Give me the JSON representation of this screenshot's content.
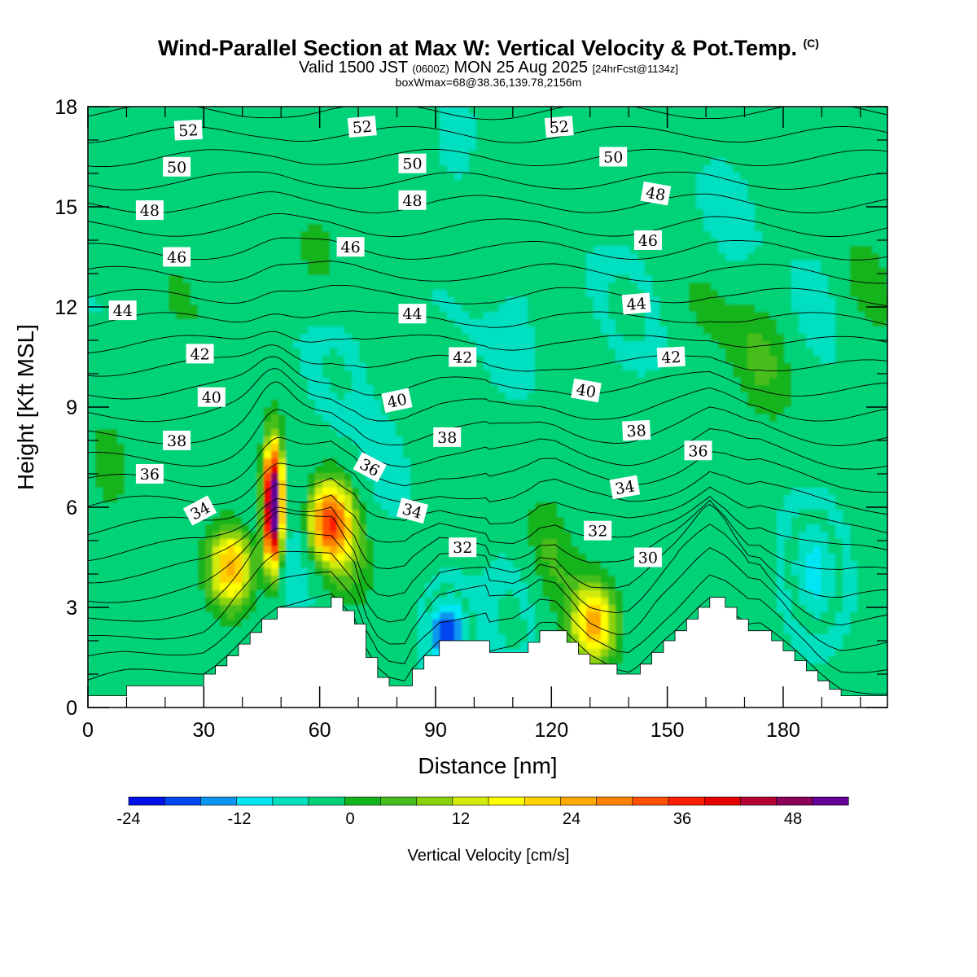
{
  "chart_data": {
    "type": "heatmap",
    "title": "Wind-Parallel Section at Max W: Vertical Velocity & Pot.Temp.",
    "title_mark": "(C)",
    "valid_prefix": "Valid 1500 JST",
    "valid_utc": "(0600Z)",
    "valid_date": "MON 25 Aug 2025",
    "forecast_info": "[24hrFcst@1134z]",
    "box_info": "boxWmax=68@38.36,139.78,2156m",
    "xlabel": "Distance [nm]",
    "ylabel": "Height [Kft MSL]",
    "xlim": [
      0,
      207
    ],
    "ylim": [
      0,
      18
    ],
    "x_ticks": [
      "0",
      "30",
      "60",
      "90",
      "120",
      "150",
      "180"
    ],
    "y_ticks": [
      "0",
      "3",
      "6",
      "9",
      "12",
      "15",
      "18"
    ],
    "colorbar": {
      "title": "Vertical Velocity [cm/s]",
      "tick_labels": [
        "-24",
        "-12",
        "0",
        "12",
        "24",
        "36",
        "48"
      ],
      "colors": [
        "#0010e8",
        "#0046f0",
        "#0a96f0",
        "#00e6f5",
        "#00e0c0",
        "#00d278",
        "#14b41e",
        "#46be1e",
        "#8cd20a",
        "#d2eb0a",
        "#ffff00",
        "#ffd200",
        "#ffaa00",
        "#ff8200",
        "#ff5000",
        "#ff1e00",
        "#e60000",
        "#b40032",
        "#8c005a",
        "#640096"
      ],
      "levels": [
        -24,
        -21,
        -18,
        -15,
        -12,
        -9,
        -6,
        -3,
        0,
        3,
        6,
        9,
        12,
        15,
        18,
        21,
        24,
        27,
        30,
        33,
        36,
        39,
        42,
        45,
        48,
        51
      ]
    },
    "w_features": [
      {
        "x": 48,
        "z": 6.0,
        "w": 55
      },
      {
        "x": 37,
        "z": 4.2,
        "w": 22
      },
      {
        "x": 62,
        "z": 5.5,
        "w": 30
      },
      {
        "x": 68,
        "z": 4.8,
        "w": 8
      },
      {
        "x": 55,
        "z": 5.0,
        "w": -8
      },
      {
        "x": 93,
        "z": 2.2,
        "w": -20
      },
      {
        "x": 112,
        "z": 3.0,
        "w": -9
      },
      {
        "x": 131,
        "z": 2.5,
        "w": 22
      },
      {
        "x": 118,
        "z": 4.2,
        "w": 9
      },
      {
        "x": 188,
        "z": 4.0,
        "w": -12
      },
      {
        "x": 75,
        "z": 6.5,
        "w": -5
      },
      {
        "x": 65,
        "z": 10.5,
        "w": -5
      },
      {
        "x": 112,
        "z": 12.0,
        "w": -5
      },
      {
        "x": 140,
        "z": 12.0,
        "w": -5
      },
      {
        "x": 165,
        "z": 14.5,
        "w": -4
      },
      {
        "x": 95,
        "z": 16.5,
        "w": -4
      },
      {
        "x": 190,
        "z": 12.5,
        "w": -4
      },
      {
        "x": 175,
        "z": 10.5,
        "w": 6
      },
      {
        "x": 160,
        "z": 12.0,
        "w": 3
      },
      {
        "x": 60,
        "z": 13.5,
        "w": 3
      },
      {
        "x": 108,
        "z": 16.0,
        "w": 3
      },
      {
        "x": 5,
        "z": 6.8,
        "w": 4
      },
      {
        "x": 200,
        "z": 12.5,
        "w": 4
      },
      {
        "x": 25,
        "z": 13.0,
        "w": 2
      }
    ],
    "terrain": {
      "x": [
        0,
        10,
        30,
        33,
        36,
        39,
        42,
        45,
        49,
        63,
        66,
        69,
        72,
        75,
        78,
        82,
        84,
        87,
        91,
        103,
        104,
        110,
        114,
        117,
        121,
        124,
        127,
        130,
        137,
        140,
        143,
        146,
        149,
        152,
        155,
        158,
        161,
        165,
        168,
        171,
        174,
        177,
        180,
        183,
        186,
        189,
        192,
        195,
        198,
        201,
        207
      ],
      "z": [
        0.35,
        0.65,
        1.0,
        1.25,
        1.55,
        1.9,
        2.25,
        2.65,
        3.0,
        3.3,
        2.9,
        2.5,
        1.5,
        0.9,
        0.65,
        0.65,
        1.15,
        1.55,
        2.0,
        2.0,
        1.65,
        1.65,
        1.95,
        2.3,
        2.3,
        1.95,
        1.6,
        1.3,
        1.0,
        1.0,
        1.3,
        1.65,
        2.0,
        2.3,
        2.65,
        3.0,
        3.3,
        3.0,
        2.65,
        2.3,
        2.3,
        2.0,
        1.7,
        1.4,
        1.1,
        0.8,
        0.55,
        0.35,
        0.35,
        0.35,
        0.35
      ]
    },
    "theta_levels": {
      "min": 28,
      "max": 53,
      "step": 1
    },
    "theta_labels": [
      {
        "text": "52",
        "x": 26,
        "z": 17.3,
        "rot": -3
      },
      {
        "text": "50",
        "x": 23,
        "z": 16.2,
        "rot": 0
      },
      {
        "text": "48",
        "x": 16,
        "z": 14.9,
        "rot": 0
      },
      {
        "text": "46",
        "x": 23,
        "z": 13.5,
        "rot": 0
      },
      {
        "text": "44",
        "x": 9,
        "z": 11.9,
        "rot": 0
      },
      {
        "text": "42",
        "x": 29,
        "z": 10.6,
        "rot": 0
      },
      {
        "text": "40",
        "x": 32,
        "z": 9.3,
        "rot": 0
      },
      {
        "text": "38",
        "x": 23,
        "z": 8.0,
        "rot": 0
      },
      {
        "text": "36",
        "x": 16,
        "z": 7.0,
        "rot": 0
      },
      {
        "text": "34",
        "x": 29,
        "z": 5.9,
        "rot": -28
      },
      {
        "text": "52",
        "x": 71,
        "z": 17.4,
        "rot": -5
      },
      {
        "text": "50",
        "x": 84,
        "z": 16.3,
        "rot": 0
      },
      {
        "text": "48",
        "x": 84,
        "z": 15.2,
        "rot": 0
      },
      {
        "text": "46",
        "x": 68,
        "z": 13.8,
        "rot": 0
      },
      {
        "text": "44",
        "x": 84,
        "z": 11.8,
        "rot": 0
      },
      {
        "text": "42",
        "x": 97,
        "z": 10.5,
        "rot": 0
      },
      {
        "text": "40",
        "x": 80,
        "z": 9.2,
        "rot": -12
      },
      {
        "text": "38",
        "x": 93,
        "z": 8.1,
        "rot": 0
      },
      {
        "text": "36",
        "x": 73,
        "z": 7.2,
        "rot": 28
      },
      {
        "text": "34",
        "x": 84,
        "z": 5.9,
        "rot": 15
      },
      {
        "text": "32",
        "x": 97,
        "z": 4.8,
        "rot": 0
      },
      {
        "text": "52",
        "x": 122,
        "z": 17.4,
        "rot": -5
      },
      {
        "text": "50",
        "x": 136,
        "z": 16.5,
        "rot": 0
      },
      {
        "text": "48",
        "x": 147,
        "z": 15.4,
        "rot": 10
      },
      {
        "text": "46",
        "x": 145,
        "z": 14.0,
        "rot": 0
      },
      {
        "text": "44",
        "x": 142,
        "z": 12.1,
        "rot": -5
      },
      {
        "text": "42",
        "x": 151,
        "z": 10.5,
        "rot": -3
      },
      {
        "text": "40",
        "x": 129,
        "z": 9.5,
        "rot": 10
      },
      {
        "text": "38",
        "x": 142,
        "z": 8.3,
        "rot": -3
      },
      {
        "text": "36",
        "x": 158,
        "z": 7.7,
        "rot": 0
      },
      {
        "text": "34",
        "x": 139,
        "z": 6.6,
        "rot": -10
      },
      {
        "text": "32",
        "x": 132,
        "z": 5.3,
        "rot": 0
      },
      {
        "text": "30",
        "x": 145,
        "z": 4.5,
        "rot": 0
      }
    ]
  }
}
